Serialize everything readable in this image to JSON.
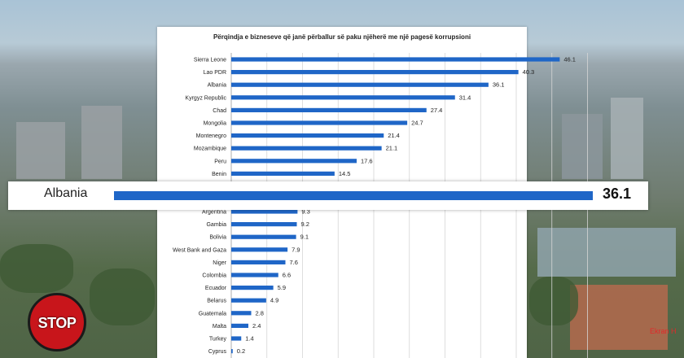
{
  "title": "Përqindja e bizneseve që janë përballur së paku njëherë me një pagesë korrupsioni",
  "highlight": {
    "label": "Albania",
    "value": "36.1"
  },
  "logo_text": "STOP",
  "watermark": "Ekran H",
  "colors": {
    "bar": "#1f66c7",
    "stop_red": "#c8151b"
  },
  "chart_data": {
    "type": "bar",
    "orientation": "horizontal",
    "title": "Përqindja e bizneseve që janë përballur së paku njëherë me një pagesë korrupsioni",
    "xlim": [
      0,
      50
    ],
    "grid": true,
    "groups": [
      {
        "categories": [
          "Sierra Leone",
          "Lao PDR",
          "Albania",
          "Kyrgyz Republic",
          "Chad",
          "Mongolia",
          "Montenegro",
          "Mozambique",
          "Peru",
          "Benin"
        ],
        "values": [
          46.1,
          40.3,
          36.1,
          31.4,
          27.4,
          24.7,
          21.4,
          21.1,
          17.6,
          14.5
        ]
      },
      {
        "categories": [
          "Argentina",
          "Gambia",
          "Bolivia",
          "West Bank and Gaza",
          "Niger",
          "Colombia",
          "Ecuador",
          "Belarus",
          "Guatemala",
          "Malta",
          "Turkey",
          "Cyprus"
        ],
        "values": [
          9.3,
          9.2,
          9.1,
          7.9,
          7.6,
          6.6,
          5.9,
          4.9,
          2.8,
          2.4,
          1.4,
          0.2
        ]
      }
    ]
  }
}
